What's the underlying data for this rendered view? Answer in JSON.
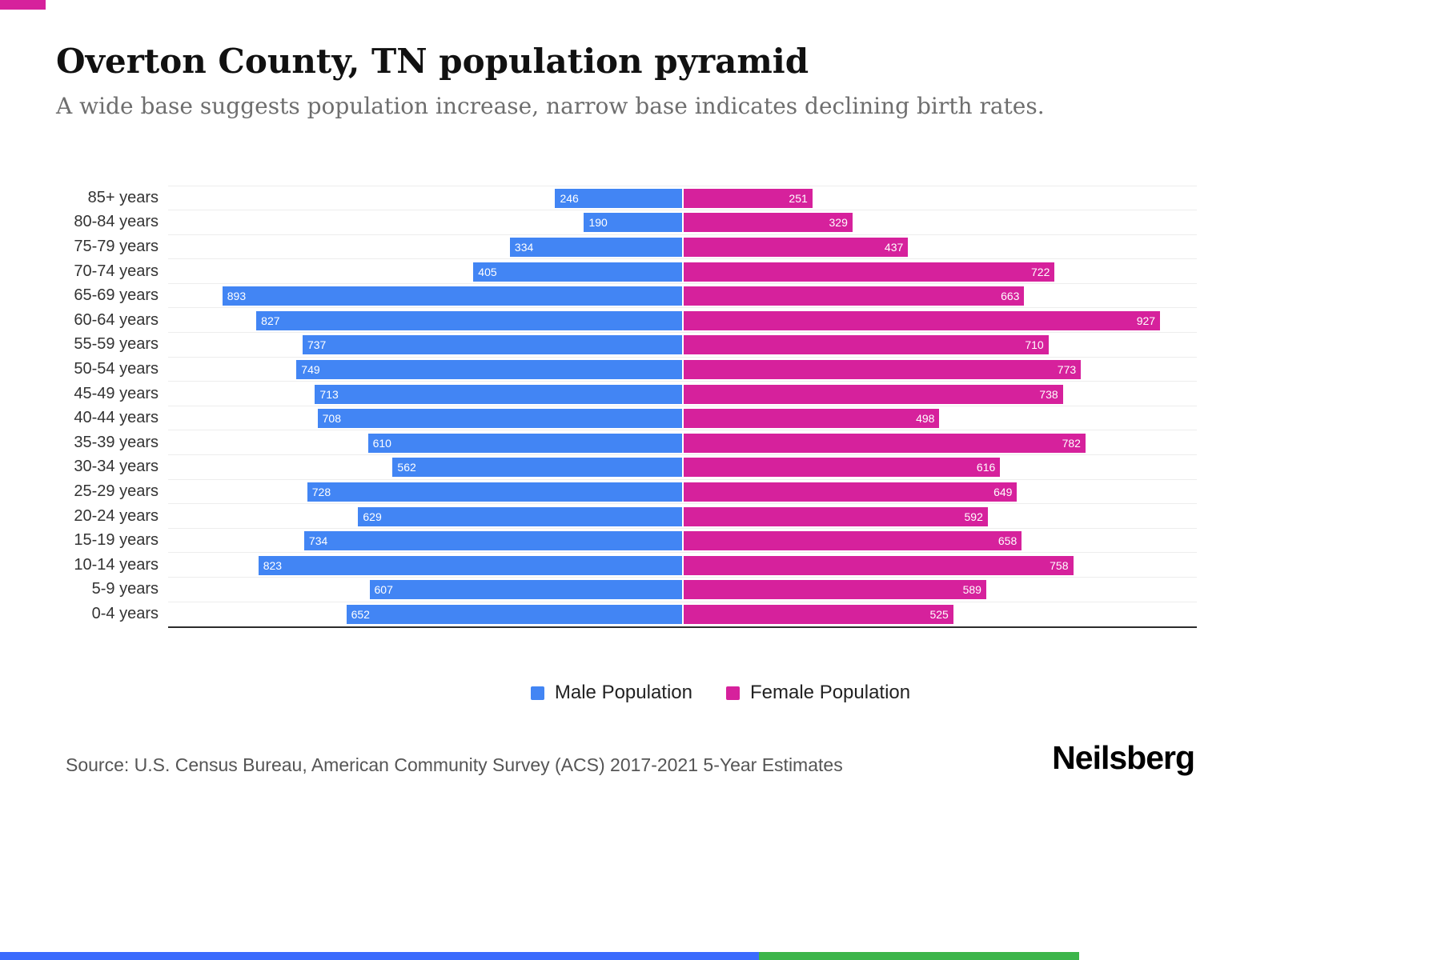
{
  "header": {
    "title": "Overton County, TN population pyramid",
    "subtitle": "A wide base suggests population increase, narrow base indicates declining birth rates."
  },
  "chart_data": {
    "type": "bar",
    "subtype": "population-pyramid",
    "title": "Overton County, TN population pyramid",
    "categories": [
      "85+ years",
      "80-84 years",
      "75-79 years",
      "70-74 years",
      "65-69 years",
      "60-64 years",
      "55-59 years",
      "50-54 years",
      "45-49 years",
      "40-44 years",
      "35-39 years",
      "30-34 years",
      "25-29 years",
      "20-24 years",
      "15-19 years",
      "10-14 years",
      "5-9 years",
      "0-4 years"
    ],
    "series": [
      {
        "name": "Male Population",
        "color": "#4285f4",
        "values": [
          246,
          190,
          334,
          405,
          893,
          827,
          737,
          749,
          713,
          708,
          610,
          562,
          728,
          629,
          734,
          823,
          607,
          652
        ]
      },
      {
        "name": "Female Population",
        "color": "#d6219c",
        "values": [
          251,
          329,
          437,
          722,
          663,
          927,
          710,
          773,
          738,
          498,
          782,
          616,
          649,
          592,
          658,
          758,
          589,
          525
        ]
      }
    ],
    "axis_max": 1000,
    "grid": true,
    "legend_position": "bottom",
    "value_labels": "inside-outer-end"
  },
  "footer": {
    "source": "Source: U.S. Census Bureau, American Community Survey (ACS) 2017-2021 5-Year Estimates",
    "brand": "Neilsberg"
  },
  "accents": {
    "top_bar_color": "#d6219c",
    "bottom_blue_color": "#3a6bfd",
    "bottom_green_color": "#3cb54a"
  }
}
